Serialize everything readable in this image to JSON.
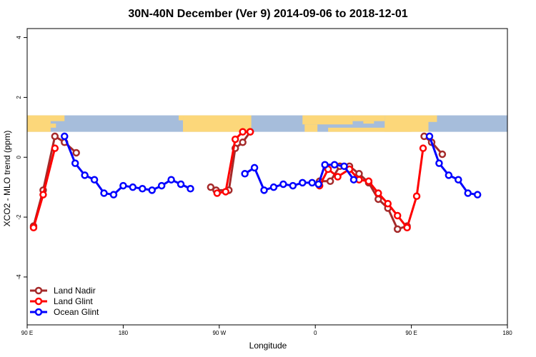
{
  "chart_data": {
    "type": "line",
    "title": "30N-40N December (Ver 9)   2014-09-06 to 2018-12-01",
    "xlabel": "Longitude",
    "ylabel": "XCO2 - MLO trend (ppm)",
    "xlim": [
      90,
      540
    ],
    "ylim": [
      -5.6,
      4.3
    ],
    "x_ticks": [
      {
        "value": 90,
        "label": "90 E"
      },
      {
        "value": 180,
        "label": "180"
      },
      {
        "value": 270,
        "label": "90 W"
      },
      {
        "value": 360,
        "label": "0"
      },
      {
        "value": 450,
        "label": "90 E"
      },
      {
        "value": 540,
        "label": "180"
      }
    ],
    "y_ticks": [
      {
        "value": -4,
        "label": "-4"
      },
      {
        "value": -2,
        "label": "-2"
      },
      {
        "value": 0,
        "label": "0"
      },
      {
        "value": 2,
        "label": "2"
      },
      {
        "value": 4,
        "label": "4"
      }
    ],
    "map_strip": {
      "ymin": 0.85,
      "ymax": 1.4,
      "ocean_color": "#a6bddb",
      "land_color": "#fcd77a"
    },
    "legend_position": "bottom-left",
    "series": [
      {
        "name": "Land Nadir",
        "color": "#a52a2a",
        "points": [
          [
            96,
            -2.3
          ],
          [
            105,
            -1.1
          ],
          [
            116,
            0.7
          ],
          [
            125,
            0.5
          ],
          [
            136,
            0.15
          ],
          [
            262,
            -1.0
          ],
          [
            267,
            -1.1
          ],
          [
            279,
            -1.1
          ],
          [
            285,
            0.3
          ],
          [
            292,
            0.5
          ],
          [
            299,
            0.85
          ],
          [
            364,
            -0.8
          ],
          [
            374,
            -0.8
          ],
          [
            383,
            -0.3
          ],
          [
            392,
            -0.3
          ],
          [
            401,
            -0.55
          ],
          [
            410,
            -0.85
          ],
          [
            419,
            -1.4
          ],
          [
            428,
            -1.7
          ],
          [
            437,
            -2.4
          ],
          [
            446,
            -2.3
          ],
          [
            462,
            0.7
          ],
          [
            469,
            0.5
          ],
          [
            479,
            0.1
          ]
        ]
      },
      {
        "name": "Land Glint",
        "color": "#ff0000",
        "points": [
          [
            96,
            -2.35
          ],
          [
            105,
            -1.25
          ],
          [
            116,
            0.3
          ],
          [
            268,
            -1.2
          ],
          [
            276,
            -1.15
          ],
          [
            285,
            0.6
          ],
          [
            292,
            0.85
          ],
          [
            299,
            0.85
          ],
          [
            364,
            -0.95
          ],
          [
            372,
            -0.4
          ],
          [
            381,
            -0.65
          ],
          [
            392,
            -0.4
          ],
          [
            401,
            -0.75
          ],
          [
            410,
            -0.8
          ],
          [
            419,
            -1.2
          ],
          [
            428,
            -1.55
          ],
          [
            437,
            -1.95
          ],
          [
            446,
            -2.35
          ],
          [
            455,
            -1.3
          ],
          [
            461,
            0.3
          ]
        ]
      },
      {
        "name": "Ocean Glint",
        "color": "#0000ff",
        "points": [
          [
            125,
            0.7
          ],
          [
            135,
            -0.2
          ],
          [
            144,
            -0.6
          ],
          [
            153,
            -0.75
          ],
          [
            162,
            -1.2
          ],
          [
            171,
            -1.25
          ],
          [
            180,
            -0.95
          ],
          [
            189,
            -1.0
          ],
          [
            198,
            -1.05
          ],
          [
            207,
            -1.1
          ],
          [
            216,
            -0.95
          ],
          [
            225,
            -0.75
          ],
          [
            234,
            -0.9
          ],
          [
            243,
            -1.05
          ],
          [
            294,
            -0.55
          ],
          [
            303,
            -0.35
          ],
          [
            312,
            -1.1
          ],
          [
            321,
            -1.0
          ],
          [
            330,
            -0.9
          ],
          [
            339,
            -0.95
          ],
          [
            348,
            -0.85
          ],
          [
            357,
            -0.85
          ],
          [
            363,
            -0.9
          ],
          [
            369,
            -0.25
          ],
          [
            378,
            -0.25
          ],
          [
            387,
            -0.3
          ],
          [
            396,
            -0.75
          ],
          [
            467,
            0.7
          ],
          [
            476,
            -0.2
          ],
          [
            485,
            -0.6
          ],
          [
            494,
            -0.75
          ],
          [
            503,
            -1.2
          ],
          [
            512,
            -1.25
          ]
        ]
      }
    ]
  }
}
